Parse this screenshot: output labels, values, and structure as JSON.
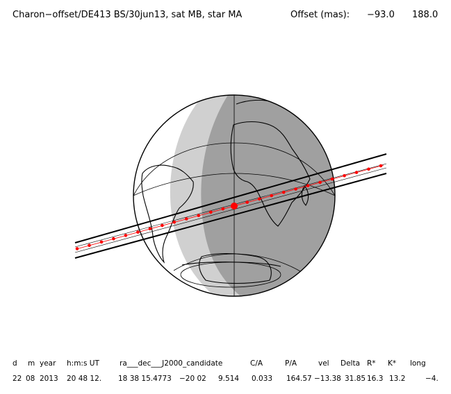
{
  "title": {
    "text": "Charon−offset/DE413 BS/30jun13, sat MB, star MA",
    "offset_label": "Offset (mas):",
    "offset_ra": "−93.0",
    "offset_dec": "188.0"
  },
  "table": {
    "headers": [
      "d",
      "m",
      "year",
      "h:m:s UT",
      "ra___dec___J2000_candidate",
      "C/A",
      "P/A",
      "vel",
      "Delta",
      "R*",
      "K*",
      "long"
    ],
    "values": [
      "22",
      "08",
      "2013",
      "20 48 12.",
      "18 38 15.4773",
      "−20 02",
      "9.514",
      "0.033",
      "164.57",
      "−13.38",
      "31.85",
      "16.3",
      "13.2",
      "−4."
    ]
  },
  "map": {
    "type": "occultation-track-on-globe",
    "colors": {
      "night": "#a0a0a0",
      "twilight": "#d0d0d0",
      "day": "#ffffff",
      "outline": "#000000",
      "track": "#ff0000"
    },
    "track_points": 26,
    "closest_approach_marker": "large red dot"
  }
}
